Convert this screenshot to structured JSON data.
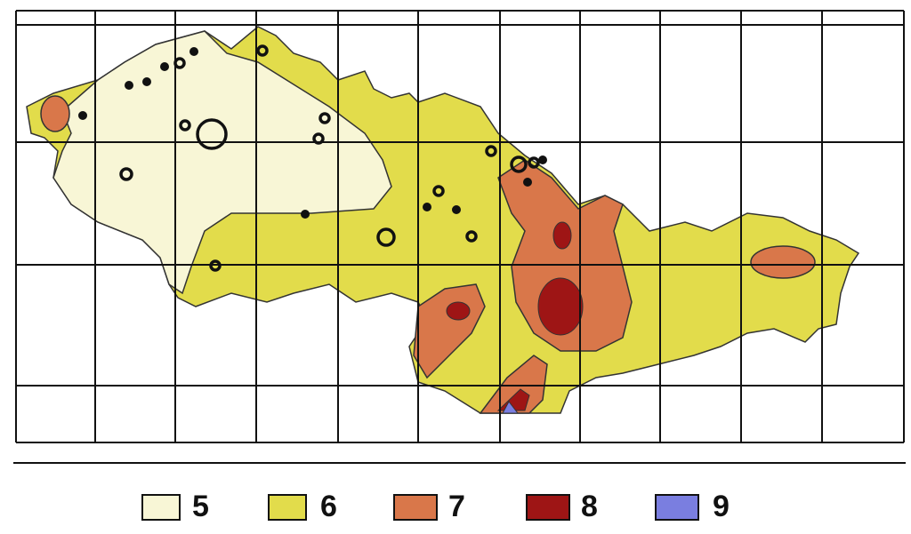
{
  "legend": [
    {
      "label": "5"
    },
    {
      "label": "6"
    },
    {
      "label": "7"
    },
    {
      "label": "8"
    },
    {
      "label": "9"
    }
  ]
}
